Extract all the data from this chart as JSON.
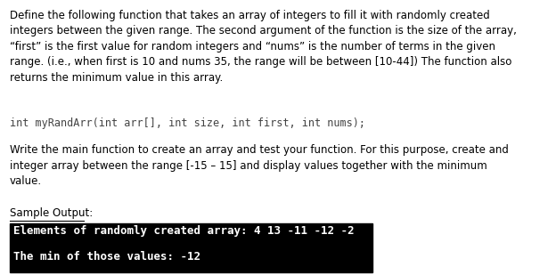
{
  "bg_color": "#ffffff",
  "text_color": "#000000",
  "fig_width": 6.24,
  "fig_height": 3.09,
  "dpi": 100,
  "para1": "Define the following function that takes an array of integers to fill it with randomly created\nintegers between the given range. The second argument of the function is the size of the array,\n“first” is the first value for random integers and “nums” is the number of terms in the given\nrange. (i.e., when first is 10 and nums 35, the range will be between [10-44]) The function also\nreturns the minimum value in this array.",
  "code_line": "int myRandArr(int arr[], int size, int first, int nums);",
  "para2": "Write the main function to create an array and test your function. For this purpose, create and\ninteger array between the range [-15 – 15] and display values together with the minimum\nvalue.",
  "sample_label": "Sample Output:",
  "output_line1": "Elements of randomly created array: 4 13 -11 -12 -2",
  "output_line2": "The min of those values: -12",
  "terminal_bg": "#000000",
  "terminal_fg": "#ffffff",
  "body_font_size": 8.5,
  "code_font_size": 8.5,
  "terminal_font_size": 9.0,
  "sample_font_size": 8.5,
  "code_color": "#444444",
  "underline_color": "#000000"
}
